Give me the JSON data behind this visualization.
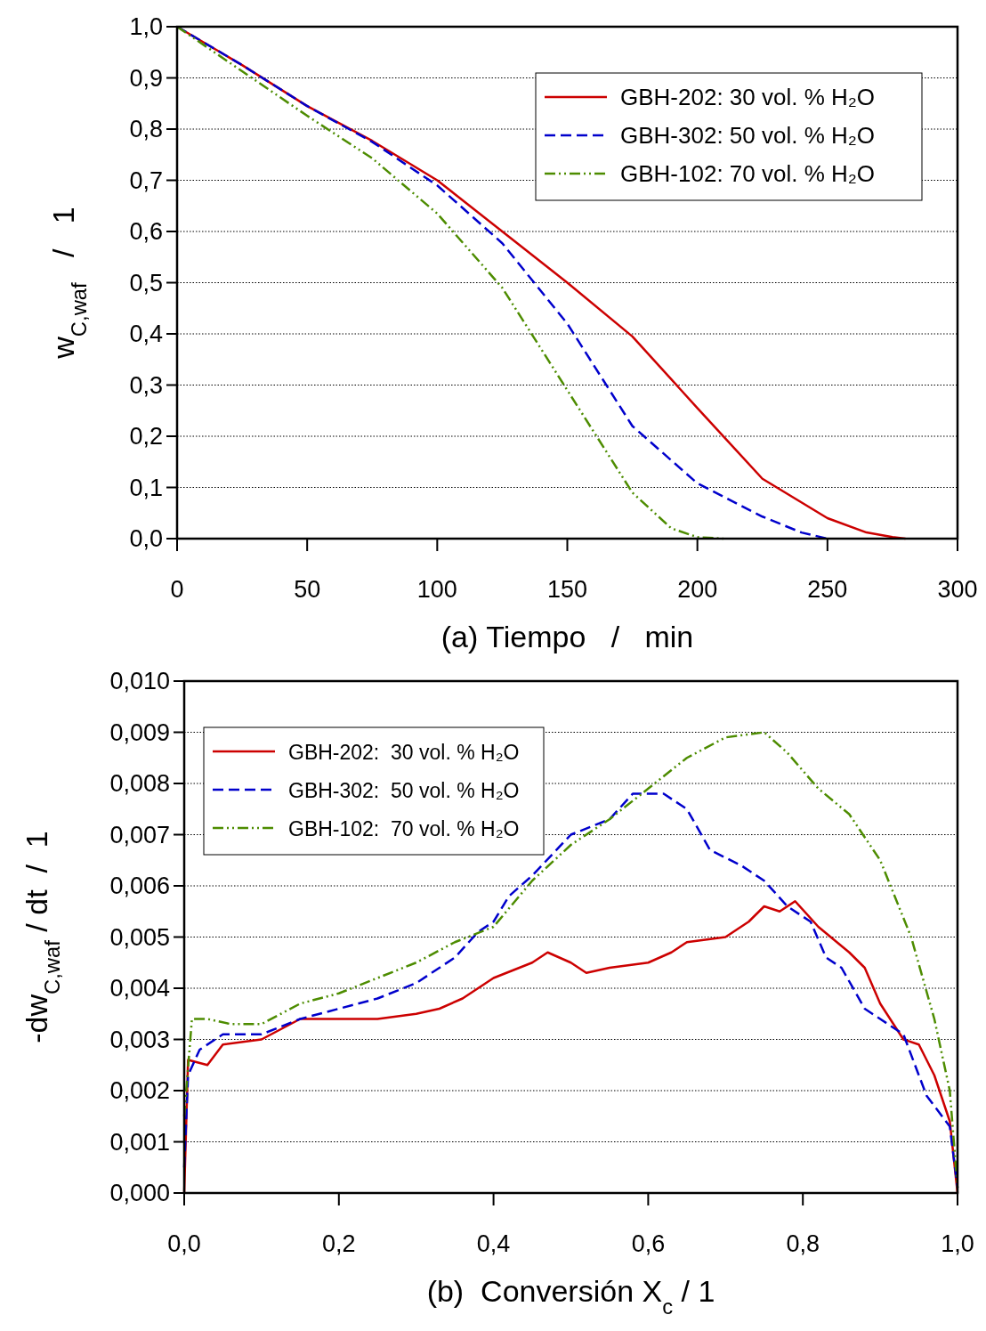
{
  "chart_data": [
    {
      "type": "line",
      "xlabel": "(a) Tiempo   /   min",
      "ylabel": "w$_{C,waf}$   /   1",
      "xlim": [
        0,
        300
      ],
      "xticks": [
        0,
        50,
        100,
        150,
        200,
        250,
        300
      ],
      "ylim": [
        0,
        1
      ],
      "yticks": [
        {
          "value": 0,
          "label": "0,0"
        },
        {
          "value": 0.1,
          "label": "0,1"
        },
        {
          "value": 0.2,
          "label": "0,2"
        },
        {
          "value": 0.3,
          "label": "0,3"
        },
        {
          "value": 0.4,
          "label": "0,4"
        },
        {
          "value": 0.5,
          "label": "0,5"
        },
        {
          "value": 0.6,
          "label": "0,6"
        },
        {
          "value": 0.7,
          "label": "0,7"
        },
        {
          "value": 0.8,
          "label": "0,8"
        },
        {
          "value": 0.9,
          "label": "0,9"
        },
        {
          "value": 1,
          "label": "1,0"
        }
      ],
      "grid": "y",
      "legend": "top right",
      "series": [
        {
          "name": "GBH-202: 30 vol. % H₂O",
          "color": "#cc0000",
          "line_style": "solid",
          "x": [
            0,
            25,
            50,
            75,
            100,
            125,
            150,
            175,
            200,
            225,
            250,
            265,
            275,
            280
          ],
          "values": [
            1,
            0.925,
            0.845,
            0.777,
            0.7,
            0.6,
            0.5,
            0.395,
            0.255,
            0.117,
            0.04,
            0.012,
            0.003,
            0
          ]
        },
        {
          "name": "GBH-302: 50 vol. % H₂O",
          "color": "#0000cc",
          "line_style": "dashed",
          "x": [
            0,
            25,
            50,
            75,
            100,
            125,
            150,
            175,
            200,
            225,
            240,
            250
          ],
          "values": [
            1,
            0.925,
            0.845,
            0.775,
            0.69,
            0.577,
            0.42,
            0.22,
            0.108,
            0.043,
            0.012,
            0
          ]
        },
        {
          "name": "GBH-102: 70 vol. % H₂O",
          "color": "#4d8c00",
          "line_style": "dashdot",
          "x": [
            0,
            25,
            50,
            75,
            100,
            125,
            150,
            175,
            190,
            200,
            210
          ],
          "values": [
            1,
            0.913,
            0.826,
            0.743,
            0.635,
            0.49,
            0.29,
            0.09,
            0.02,
            0.003,
            0
          ]
        }
      ]
    },
    {
      "type": "line",
      "xlabel": "(b)  Conversión X$_{c}$ / 1",
      "ylabel": "-dw$_{C,waf}$ / dt  /  1",
      "xlim": [
        0,
        1
      ],
      "xticks": [
        {
          "value": 0,
          "label": "0,0"
        },
        {
          "value": 0.2,
          "label": "0,2"
        },
        {
          "value": 0.4,
          "label": "0,4"
        },
        {
          "value": 0.6,
          "label": "0,6"
        },
        {
          "value": 0.8,
          "label": "0,8"
        },
        {
          "value": 1,
          "label": "1,0"
        }
      ],
      "ylim": [
        0,
        0.01
      ],
      "yticks": [
        {
          "value": 0,
          "label": "0,000"
        },
        {
          "value": 0.001,
          "label": "0,001"
        },
        {
          "value": 0.002,
          "label": "0,002"
        },
        {
          "value": 0.003,
          "label": "0,003"
        },
        {
          "value": 0.004,
          "label": "0,004"
        },
        {
          "value": 0.005,
          "label": "0,005"
        },
        {
          "value": 0.006,
          "label": "0,006"
        },
        {
          "value": 0.007,
          "label": "0,007"
        },
        {
          "value": 0.008,
          "label": "0,008"
        },
        {
          "value": 0.009,
          "label": "0,009"
        },
        {
          "value": 0.01,
          "label": "0,010"
        }
      ],
      "grid": "y",
      "legend": "top left",
      "series": [
        {
          "name": "GBH-202:  30 vol. % H₂O",
          "color": "#cc0000",
          "line_style": "solid",
          "x": [
            0,
            0.005,
            0.03,
            0.05,
            0.1,
            0.15,
            0.2,
            0.25,
            0.3,
            0.33,
            0.36,
            0.4,
            0.45,
            0.47,
            0.5,
            0.52,
            0.55,
            0.6,
            0.63,
            0.65,
            0.7,
            0.73,
            0.75,
            0.77,
            0.79,
            0.82,
            0.86,
            0.88,
            0.9,
            0.93,
            0.95,
            0.97,
            0.99,
            1
          ],
          "values": [
            0,
            0.0026,
            0.0025,
            0.0029,
            0.003,
            0.0034,
            0.0034,
            0.0034,
            0.0035,
            0.0036,
            0.0038,
            0.0042,
            0.0045,
            0.0047,
            0.0045,
            0.0043,
            0.0044,
            0.0045,
            0.0047,
            0.0049,
            0.005,
            0.0053,
            0.0056,
            0.0055,
            0.0057,
            0.0052,
            0.0047,
            0.0044,
            0.0037,
            0.003,
            0.0029,
            0.0023,
            0.0014,
            0
          ]
        },
        {
          "name": "GBH-302:  50 vol. % H₂O",
          "color": "#0000cc",
          "line_style": "dashed",
          "x": [
            0,
            0.005,
            0.02,
            0.05,
            0.1,
            0.15,
            0.2,
            0.25,
            0.3,
            0.35,
            0.38,
            0.4,
            0.42,
            0.45,
            0.5,
            0.55,
            0.58,
            0.62,
            0.65,
            0.68,
            0.72,
            0.75,
            0.78,
            0.81,
            0.83,
            0.85,
            0.88,
            0.9,
            0.93,
            0.96,
            0.99,
            1
          ],
          "values": [
            0.0005,
            0.0023,
            0.0028,
            0.0031,
            0.0031,
            0.0034,
            0.0036,
            0.0038,
            0.0041,
            0.0046,
            0.0051,
            0.0053,
            0.0058,
            0.0062,
            0.007,
            0.0073,
            0.0078,
            0.0078,
            0.0075,
            0.0067,
            0.0064,
            0.0061,
            0.0056,
            0.0053,
            0.0046,
            0.0044,
            0.0036,
            0.0034,
            0.0031,
            0.0019,
            0.0013,
            0.0001
          ]
        },
        {
          "name": "GBH-102:  70 vol. % H₂O",
          "color": "#4d8c00",
          "line_style": "dashdot",
          "x": [
            0,
            0.01,
            0.03,
            0.06,
            0.1,
            0.15,
            0.2,
            0.25,
            0.3,
            0.35,
            0.4,
            0.45,
            0.5,
            0.55,
            0.6,
            0.65,
            0.7,
            0.75,
            0.78,
            0.82,
            0.86,
            0.9,
            0.94,
            0.97,
            0.99,
            1
          ],
          "values": [
            0.0015,
            0.0034,
            0.0034,
            0.0033,
            0.0033,
            0.0037,
            0.0039,
            0.0042,
            0.0045,
            0.0049,
            0.0052,
            0.0061,
            0.0068,
            0.0073,
            0.0079,
            0.0085,
            0.0089,
            0.009,
            0.0086,
            0.0079,
            0.0074,
            0.0065,
            0.005,
            0.0034,
            0.002,
            0.0001
          ]
        }
      ]
    }
  ]
}
